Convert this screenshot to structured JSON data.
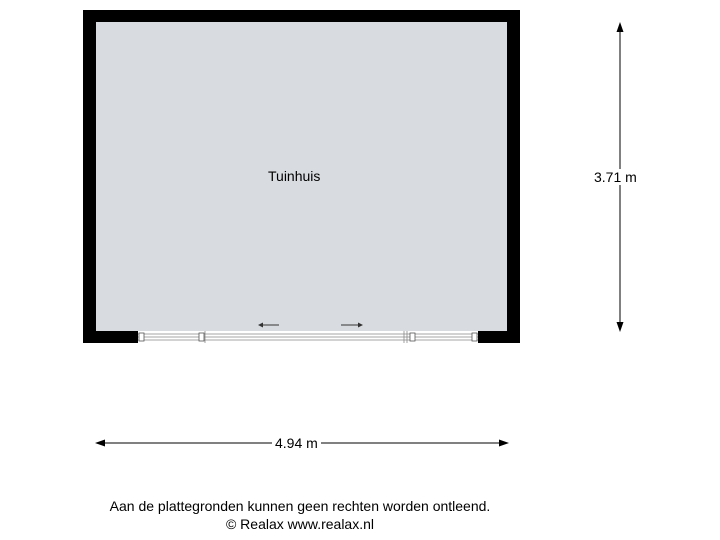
{
  "room": {
    "name": "Tuinhuis",
    "floor_color": "#d8dce0",
    "wall_color": "#000000"
  },
  "dimensions": {
    "width": "4.94 m",
    "height": "3.71 m"
  },
  "footer": {
    "disclaimer": "Aan de plattegronden kunnen geen rechten worden ontleend.",
    "copyright": "© Realax www.realax.nl"
  }
}
